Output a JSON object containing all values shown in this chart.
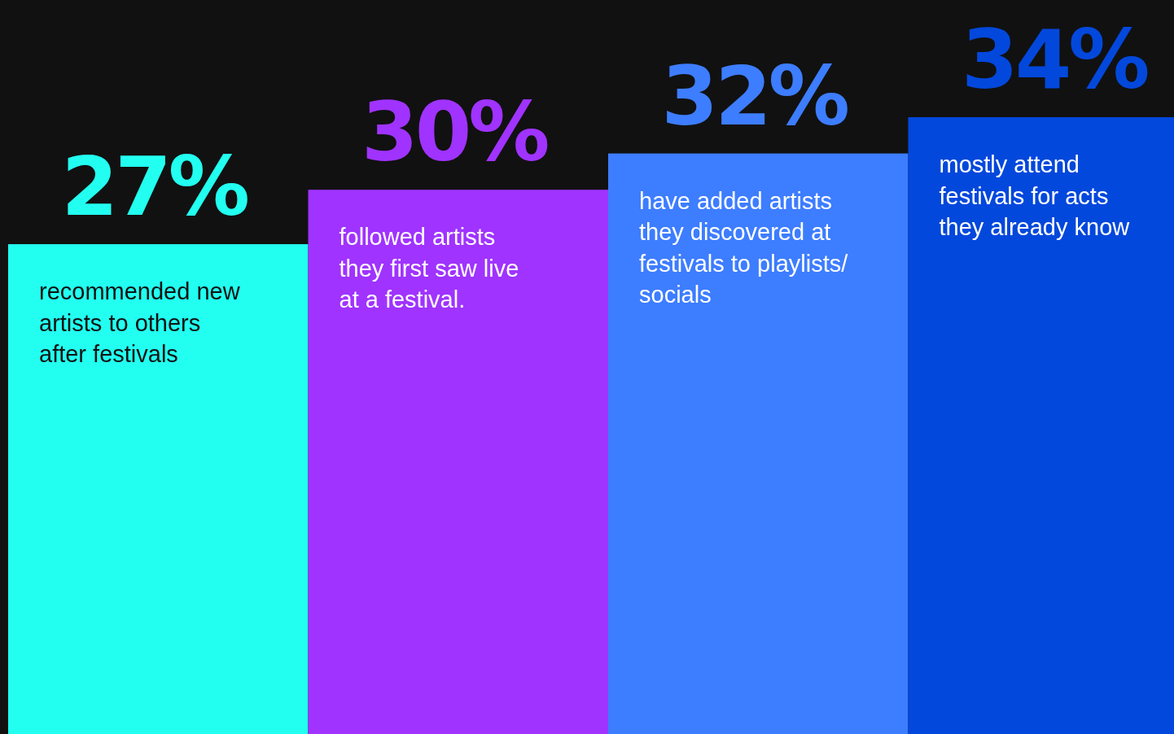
{
  "chart_data": {
    "type": "bar",
    "categories": [
      "recommended new\nartists to others\nafter festivals",
      "followed artists\nthey first saw live\nat a festival.",
      "have added artists\nthey discovered at\nfestivals to playlists/\nsocials",
      "mostly attend\nfestivals for acts\nthey already know"
    ],
    "values": [
      27,
      30,
      32,
      34
    ],
    "colors": [
      "#22fff0",
      "#a033ff",
      "#3d7dff",
      "#0348dc"
    ],
    "value_labels": [
      "27%",
      "30%",
      "32%",
      "34%"
    ]
  }
}
